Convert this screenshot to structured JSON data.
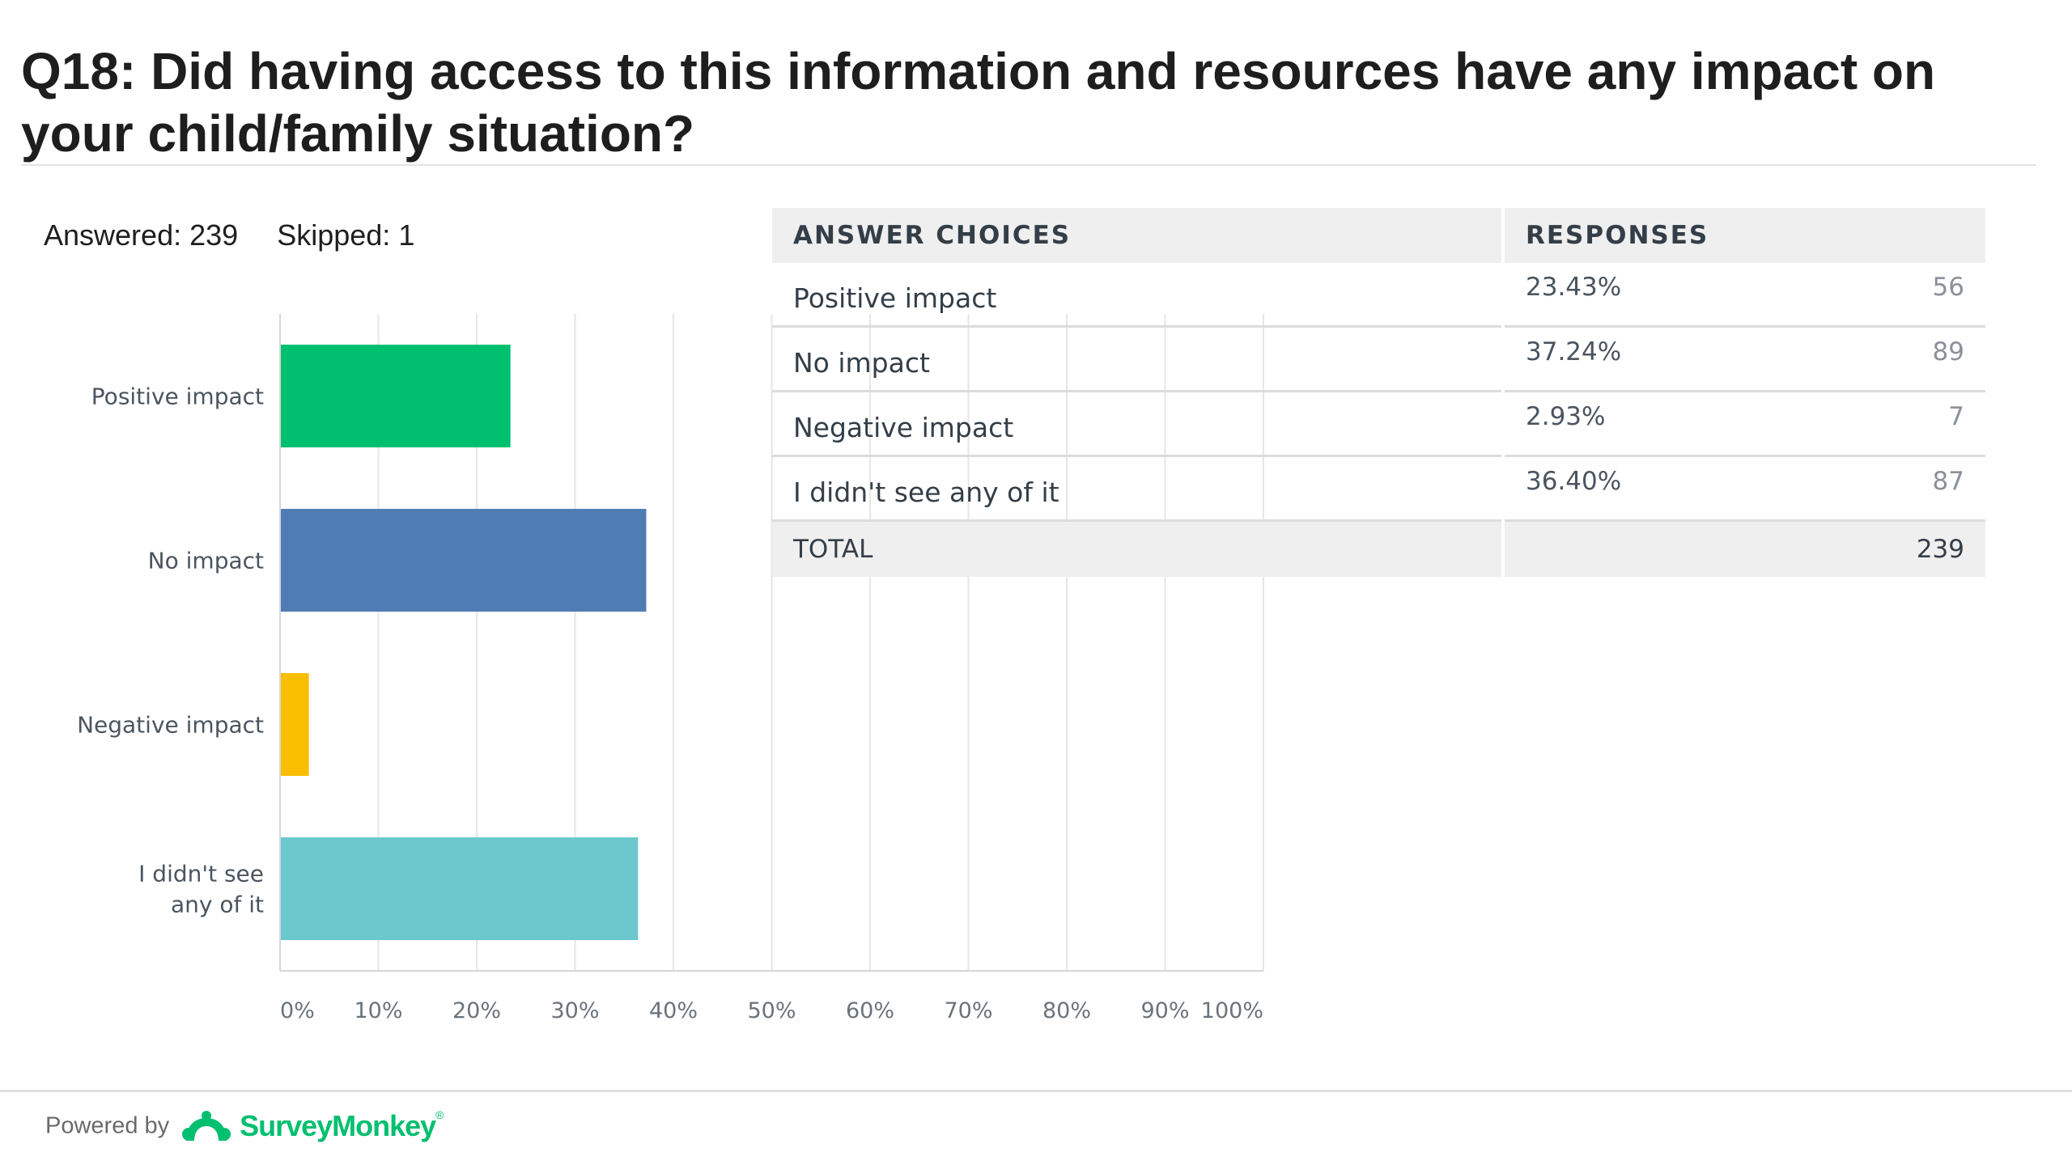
{
  "title": "Q18: Did having access to this information and resources have any impact on your child/family situation?",
  "summary": {
    "answered_label": "Answered:",
    "answered": "239",
    "skipped_label": "Skipped:",
    "skipped": "1"
  },
  "chart_data": {
    "type": "bar",
    "orientation": "horizontal",
    "categories": [
      [
        "Positive impact"
      ],
      [
        "No impact"
      ],
      [
        "Negative impact"
      ],
      [
        "I didn't see",
        "any of it"
      ]
    ],
    "values": [
      23.43,
      37.24,
      2.93,
      36.4
    ],
    "colors": [
      "#00bf6f",
      "#507cb6",
      "#f9be00",
      "#6bc8cd"
    ],
    "xlim": [
      0,
      100
    ],
    "ticks": [
      "0%",
      "10%",
      "20%",
      "30%",
      "40%",
      "50%",
      "60%",
      "70%",
      "80%",
      "90%",
      "100%"
    ],
    "grid": true
  },
  "table": {
    "headers": [
      "ANSWER CHOICES",
      "RESPONSES"
    ],
    "rows": [
      {
        "choice": "Positive impact",
        "percent": "23.43%",
        "count": "56"
      },
      {
        "choice": "No impact",
        "percent": "37.24%",
        "count": "89"
      },
      {
        "choice": "Negative impact",
        "percent": "2.93%",
        "count": "7"
      },
      {
        "choice": "I didn't see any of it",
        "percent": "36.40%",
        "count": "87"
      }
    ],
    "total_label": "TOTAL",
    "total": "239"
  },
  "footer": {
    "powered_by": "Powered by",
    "brand": "SurveyMonkey",
    "brand_mark": "®",
    "logo_icon": "surveymonkey-logo-icon"
  }
}
